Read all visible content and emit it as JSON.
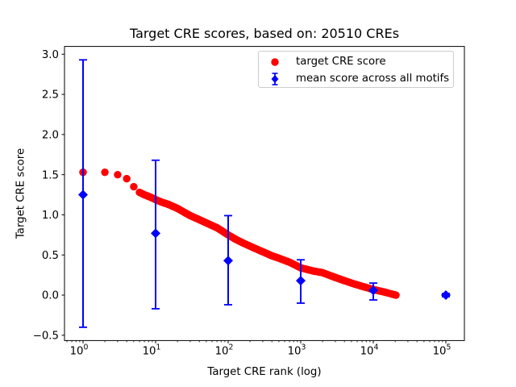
{
  "figure": {
    "title": "Target CRE scores, based on: 20510 CREs",
    "xlabel": "Target CRE rank (log)",
    "ylabel": "Target CRE score"
  },
  "legend": {
    "position": "upper right",
    "items": [
      {
        "label": "target CRE score",
        "marker": "red-circle",
        "color": "#ff0000"
      },
      {
        "label": "mean score across all motifs",
        "marker": "blue-diamond-errorbar",
        "color": "#0000ff"
      }
    ]
  },
  "chart_data": {
    "type": "scatter",
    "title": "Target CRE scores, based on: 20510 CREs",
    "xlabel": "Target CRE rank (log)",
    "ylabel": "Target CRE score",
    "x_scale": "log",
    "xlim": [
      0.55,
      180000
    ],
    "ylim": [
      -0.57,
      3.1
    ],
    "grid": false,
    "legend_position": "upper right",
    "n_cres": 20510,
    "x_ticks": [
      {
        "value": 1,
        "label": "10^0"
      },
      {
        "value": 10,
        "label": "10^1"
      },
      {
        "value": 100,
        "label": "10^2"
      },
      {
        "value": 1000,
        "label": "10^3"
      },
      {
        "value": 10000,
        "label": "10^4"
      },
      {
        "value": 100000,
        "label": "10^5"
      }
    ],
    "y_ticks": [
      {
        "value": -0.5,
        "label": "−0.5"
      },
      {
        "value": 0.0,
        "label": "0.0"
      },
      {
        "value": 0.5,
        "label": "0.5"
      },
      {
        "value": 1.0,
        "label": "1.0"
      },
      {
        "value": 1.5,
        "label": "1.5"
      },
      {
        "value": 2.0,
        "label": "2.0"
      },
      {
        "value": 2.5,
        "label": "2.5"
      },
      {
        "value": 3.0,
        "label": "3.0"
      }
    ],
    "series": [
      {
        "name": "target CRE score",
        "type": "scatter-dense",
        "marker": "circle",
        "color": "#ff0000",
        "band_start_rank": 6,
        "points": [
          [
            1,
            1.53
          ],
          [
            2,
            1.53
          ],
          [
            3,
            1.5
          ],
          [
            4,
            1.45
          ],
          [
            5,
            1.35
          ],
          [
            6,
            1.28
          ],
          [
            7,
            1.25
          ],
          [
            8,
            1.23
          ],
          [
            9,
            1.21
          ],
          [
            10,
            1.19
          ],
          [
            12,
            1.16
          ],
          [
            15,
            1.13
          ],
          [
            20,
            1.08
          ],
          [
            25,
            1.03
          ],
          [
            30,
            0.99
          ],
          [
            40,
            0.94
          ],
          [
            50,
            0.9
          ],
          [
            70,
            0.84
          ],
          [
            100,
            0.75
          ],
          [
            130,
            0.69
          ],
          [
            160,
            0.65
          ],
          [
            200,
            0.61
          ],
          [
            300,
            0.54
          ],
          [
            400,
            0.49
          ],
          [
            500,
            0.46
          ],
          [
            700,
            0.41
          ],
          [
            1000,
            0.34
          ],
          [
            1500,
            0.3
          ],
          [
            2000,
            0.28
          ],
          [
            3000,
            0.22
          ],
          [
            4000,
            0.18
          ],
          [
            5000,
            0.15
          ],
          [
            7000,
            0.11
          ],
          [
            10000,
            0.07
          ],
          [
            14000,
            0.04
          ],
          [
            20510,
            0.0
          ]
        ]
      },
      {
        "name": "mean score across all motifs",
        "type": "errorbar",
        "marker": "diamond",
        "color": "#0000ff",
        "points": [
          {
            "rank": 1,
            "mean": 1.25,
            "lo": -0.4,
            "hi": 2.93
          },
          {
            "rank": 10,
            "mean": 0.77,
            "lo": -0.17,
            "hi": 1.68
          },
          {
            "rank": 100,
            "mean": 0.43,
            "lo": -0.12,
            "hi": 0.99
          },
          {
            "rank": 1000,
            "mean": 0.18,
            "lo": -0.1,
            "hi": 0.44
          },
          {
            "rank": 10000,
            "mean": 0.06,
            "lo": -0.06,
            "hi": 0.15
          },
          {
            "rank": 100000,
            "mean": 0.0,
            "lo": -0.02,
            "hi": 0.02
          }
        ]
      }
    ]
  }
}
